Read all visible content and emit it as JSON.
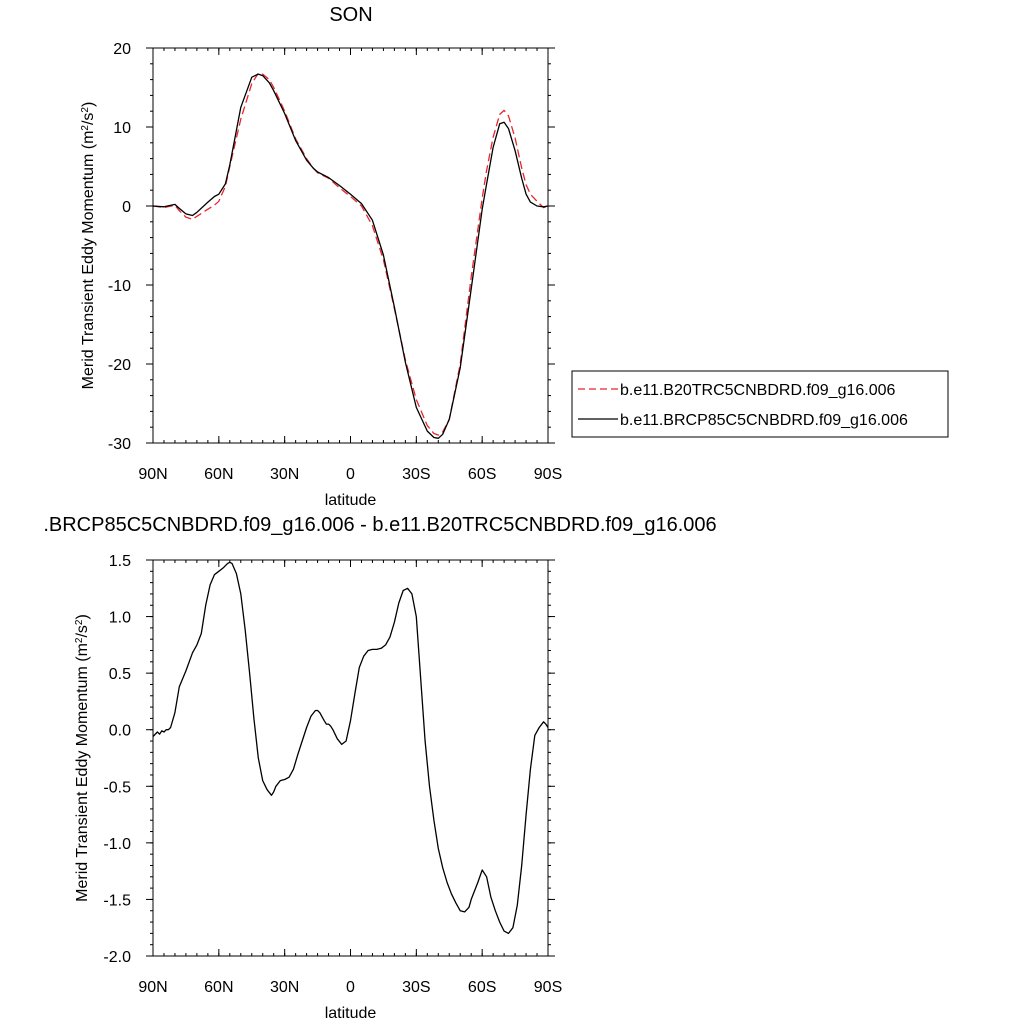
{
  "chart_data": [
    {
      "type": "line",
      "title": "SON",
      "xlabel": "latitude",
      "ylabel": "Merid Transient Eddy Momentum (m²/s²)",
      "ylabel_main": "Merid Transient Eddy Momentum (m",
      "ylabel_units_mid": "/s",
      "ylabel_units_end": ")",
      "ylabel_sup": "2",
      "xlim": [
        90,
        -90
      ],
      "ylim": [
        -30,
        20
      ],
      "x_ticks": [
        90,
        60,
        30,
        0,
        -30,
        -60,
        -90
      ],
      "x_tick_labels": [
        "90N",
        "60N",
        "30N",
        "0",
        "30S",
        "60S",
        "90S"
      ],
      "y_ticks": [
        20,
        10,
        0,
        -10,
        -20,
        -30
      ],
      "y_tick_labels": [
        "20",
        "10",
        "0",
        "-10",
        "-20",
        "-30"
      ],
      "y_minor_step": 2,
      "x_minor_step": 5,
      "legend_position": "right, outside plot",
      "series": [
        {
          "name": "b.e11.B20TRC5CNBDRD.f09_g16.006",
          "color": "#e8252d",
          "dash": "dashed",
          "x": [
            90,
            85,
            80,
            78,
            75,
            72,
            70,
            65,
            62,
            60,
            57,
            55,
            50,
            45,
            42,
            40,
            37,
            35,
            30,
            25,
            20,
            17,
            15,
            10,
            5,
            0,
            -5,
            -10,
            -15,
            -20,
            -25,
            -30,
            -35,
            -38,
            -40,
            -42,
            -45,
            -50,
            -55,
            -60,
            -62,
            -65,
            -68,
            -70,
            -72,
            -75,
            -78,
            -80,
            -82,
            -85,
            -88,
            -90
          ],
          "y": [
            0,
            -0.2,
            0.1,
            -0.6,
            -1.4,
            -1.7,
            -1.3,
            -0.4,
            0.1,
            0.6,
            2.5,
            5,
            11,
            15.5,
            16.8,
            16.7,
            16,
            15,
            12,
            8.5,
            6,
            4.8,
            4.2,
            3.5,
            2.3,
            1.2,
            0,
            -2.5,
            -6.8,
            -13,
            -19.5,
            -24.5,
            -27.8,
            -28.8,
            -29,
            -28.6,
            -27,
            -20,
            -9,
            1,
            4.5,
            8.7,
            11.6,
            12.1,
            11.4,
            8.6,
            4.8,
            2.7,
            1.5,
            0.6,
            -0.2,
            0
          ]
        },
        {
          "name": "b.e11.BRCP85C5CNBDRD.f09_g16.006",
          "color": "#000000",
          "dash": "solid",
          "x": [
            90,
            85,
            80,
            78,
            75,
            72,
            70,
            65,
            62,
            60,
            57,
            55,
            50,
            45,
            42,
            40,
            37,
            35,
            30,
            25,
            20,
            17,
            15,
            10,
            5,
            0,
            -5,
            -10,
            -15,
            -20,
            -25,
            -30,
            -35,
            -38,
            -40,
            -42,
            -45,
            -50,
            -55,
            -60,
            -62,
            -65,
            -68,
            -70,
            -72,
            -75,
            -78,
            -80,
            -82,
            -85,
            -88,
            -90
          ],
          "y": [
            0,
            -0.1,
            0.2,
            -0.3,
            -1,
            -1.2,
            -0.8,
            0.5,
            1.2,
            1.5,
            2.8,
            5.2,
            12.5,
            16.3,
            16.7,
            16.5,
            15.6,
            14.6,
            11.7,
            8.3,
            5.8,
            4.8,
            4.3,
            3.6,
            2.6,
            1.5,
            0.3,
            -1.8,
            -6.2,
            -12.8,
            -19.8,
            -25.5,
            -28.5,
            -29.3,
            -29.4,
            -28.9,
            -27,
            -20.5,
            -10.5,
            -0.4,
            2.8,
            7.4,
            10.4,
            10.6,
            9.8,
            7,
            3.5,
            1.5,
            0.5,
            0,
            -0.1,
            0
          ]
        }
      ]
    },
    {
      "type": "line",
      "title": ".BRCP85C5CNBDRD.f09_g16.006 - b.e11.B20TRC5CNBDRD.f09_g16.006",
      "xlabel": "latitude",
      "ylabel": "Merid Transient Eddy Momentum (m²/s²)",
      "ylabel_main": "Merid Transient Eddy Momentum (m",
      "ylabel_units_mid": "/s",
      "ylabel_units_end": ")",
      "ylabel_sup": "2",
      "xlim": [
        90,
        -90
      ],
      "ylim": [
        -2.0,
        1.5
      ],
      "x_ticks": [
        90,
        60,
        30,
        0,
        -30,
        -60,
        -90
      ],
      "x_tick_labels": [
        "90N",
        "60N",
        "30N",
        "0",
        "30S",
        "60S",
        "90S"
      ],
      "y_ticks": [
        1.5,
        1.0,
        0.5,
        0.0,
        -0.5,
        -1.0,
        -1.5,
        -2.0
      ],
      "y_tick_labels": [
        "1.5",
        "1.0",
        "0.5",
        "0.0",
        "-0.5",
        "-1.0",
        "-1.5",
        "-2.0"
      ],
      "y_minor_step": 0.1,
      "x_minor_step": 5,
      "series": [
        {
          "name": "",
          "color": "#000000",
          "dash": "solid",
          "x": [
            90,
            88,
            87,
            86,
            85,
            84,
            83,
            82,
            80,
            78,
            75,
            72,
            70,
            68,
            66,
            64,
            62,
            60,
            58,
            56,
            55,
            54,
            52,
            50,
            48,
            46,
            44,
            42,
            40,
            38,
            36,
            35,
            34,
            32,
            30,
            28,
            26,
            24,
            22,
            20,
            18,
            16,
            15,
            14,
            12,
            11,
            10,
            9,
            8,
            6,
            4,
            2,
            0,
            -2,
            -4,
            -6,
            -8,
            -10,
            -12,
            -14,
            -16,
            -18,
            -20,
            -22,
            -24,
            -26,
            -28,
            -30,
            -32,
            -34,
            -36,
            -38,
            -40,
            -42,
            -44,
            -46,
            -48,
            -50,
            -52,
            -54,
            -55,
            -56,
            -58,
            -60,
            -62,
            -64,
            -66,
            -68,
            -70,
            -72,
            -74,
            -76,
            -78,
            -80,
            -82,
            -84,
            -86,
            -88,
            -89,
            -90
          ],
          "y": [
            -0.06,
            -0.02,
            -0.04,
            -0.01,
            -0.02,
            0,
            0,
            0.02,
            0.15,
            0.38,
            0.52,
            0.68,
            0.75,
            0.85,
            1.1,
            1.28,
            1.37,
            1.4,
            1.43,
            1.47,
            1.48,
            1.47,
            1.38,
            1.2,
            0.88,
            0.5,
            0.1,
            -0.25,
            -0.45,
            -0.53,
            -0.58,
            -0.55,
            -0.5,
            -0.45,
            -0.44,
            -0.42,
            -0.35,
            -0.22,
            -0.1,
            0.02,
            0.12,
            0.17,
            0.17,
            0.15,
            0.08,
            0.05,
            0.05,
            0.03,
            0,
            -0.08,
            -0.13,
            -0.1,
            0.08,
            0.32,
            0.55,
            0.65,
            0.7,
            0.71,
            0.71,
            0.72,
            0.75,
            0.82,
            0.95,
            1.12,
            1.23,
            1.25,
            1.2,
            1.0,
            0.45,
            -0.1,
            -0.5,
            -0.8,
            -1.05,
            -1.22,
            -1.35,
            -1.45,
            -1.53,
            -1.6,
            -1.61,
            -1.57,
            -1.5,
            -1.45,
            -1.35,
            -1.24,
            -1.3,
            -1.48,
            -1.6,
            -1.7,
            -1.78,
            -1.8,
            -1.75,
            -1.55,
            -1.2,
            -0.75,
            -0.35,
            -0.05,
            0.02,
            0.07,
            0.05,
            0.02
          ]
        }
      ]
    }
  ]
}
